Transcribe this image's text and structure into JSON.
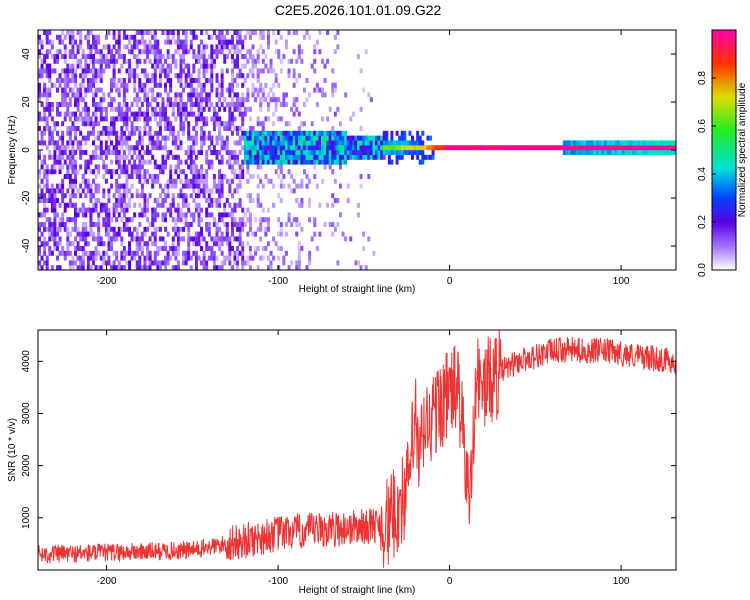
{
  "title": "C2E5.2026.101.01.09.G22",
  "chart_data": [
    {
      "type": "heatmap",
      "title": "C2E5.2026.101.01.09.G22",
      "xlabel": "Height of straight line (km)",
      "ylabel": "Frequency (Hz)",
      "xlim": [
        -240,
        132
      ],
      "ylim": [
        -50,
        50
      ],
      "xticks": [
        -200,
        -100,
        0,
        100
      ],
      "yticks": [
        -40,
        -20,
        0,
        20,
        40
      ],
      "colorbar": {
        "label": "Normalized spectral amplitude",
        "range": [
          0,
          1
        ],
        "ticks": [
          0.0,
          0.2,
          0.4,
          0.6,
          0.8
        ],
        "tick_labels": [
          "0.0",
          "0.2",
          "0.4",
          "0.6",
          "0.8"
        ]
      },
      "description_points": [
        {
          "height_km": -230,
          "spread_hz": 50,
          "amplitude": 0.15
        },
        {
          "height_km": -120,
          "spread_hz": 8,
          "amplitude": 0.35
        },
        {
          "height_km": -60,
          "spread_hz": 6,
          "amplitude": 0.45
        },
        {
          "height_km": -15,
          "spread_hz": 2,
          "amplitude": 0.7
        },
        {
          "height_km": 0,
          "spread_hz": 1.5,
          "amplitude": 0.95
        },
        {
          "height_km": 130,
          "spread_hz": 2.5,
          "amplitude": 0.95
        }
      ]
    },
    {
      "type": "line",
      "xlabel": "Height of straight line (km)",
      "ylabel": "SNR (10 * v/v)",
      "xlim": [
        -240,
        132
      ],
      "ylim": [
        0,
        4600
      ],
      "xticks": [
        -200,
        -100,
        0,
        100
      ],
      "yticks": [
        1000,
        2000,
        3000,
        4000
      ],
      "series": [
        {
          "name": "SNR",
          "color": "#ee3333",
          "x": [
            -240,
            -200,
            -150,
            -120,
            -100,
            -80,
            -60,
            -45,
            -35,
            -30,
            -25,
            -22,
            -20,
            -18,
            -15,
            -10,
            -5,
            0,
            5,
            10,
            12,
            15,
            20,
            25,
            30,
            40,
            50,
            60,
            70,
            80,
            90,
            100,
            110,
            120,
            132
          ],
          "y": [
            300,
            330,
            380,
            550,
            700,
            750,
            800,
            850,
            900,
            1200,
            1500,
            2300,
            3000,
            2000,
            2700,
            2900,
            3200,
            3400,
            3500,
            1800,
            1200,
            3700,
            3500,
            3700,
            3800,
            4000,
            4100,
            4200,
            4220,
            4200,
            4200,
            4150,
            4100,
            4050,
            4000
          ]
        }
      ]
    }
  ]
}
